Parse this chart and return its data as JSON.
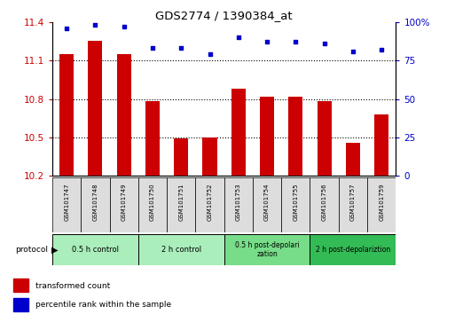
{
  "title": "GDS2774 / 1390384_at",
  "samples": [
    "GSM101747",
    "GSM101748",
    "GSM101749",
    "GSM101750",
    "GSM101751",
    "GSM101752",
    "GSM101753",
    "GSM101754",
    "GSM101755",
    "GSM101756",
    "GSM101757",
    "GSM101759"
  ],
  "bar_values": [
    11.15,
    11.25,
    11.15,
    10.78,
    10.49,
    10.5,
    10.88,
    10.82,
    10.82,
    10.78,
    10.46,
    10.68
  ],
  "dot_values": [
    96,
    98,
    97,
    83,
    83,
    79,
    90,
    87,
    87,
    86,
    81,
    82
  ],
  "bar_color": "#cc0000",
  "dot_color": "#0000cc",
  "ylim_left": [
    10.2,
    11.4
  ],
  "ylim_right": [
    0,
    100
  ],
  "yticks_left": [
    10.2,
    10.5,
    10.8,
    11.1,
    11.4
  ],
  "yticks_right": [
    0,
    25,
    50,
    75,
    100
  ],
  "ytick_labels_left": [
    "10.2",
    "10.5",
    "10.8",
    "11.1",
    "11.4"
  ],
  "ytick_labels_right": [
    "0",
    "25",
    "50",
    "75",
    "100%"
  ],
  "protocol_groups": [
    {
      "label": "0.5 h control",
      "start": 0,
      "end": 3,
      "color": "#aaeebb"
    },
    {
      "label": "2 h control",
      "start": 3,
      "end": 6,
      "color": "#aaeebb"
    },
    {
      "label": "0.5 h post-depolarization",
      "start": 6,
      "end": 9,
      "color": "#77dd88"
    },
    {
      "label": "2 h post-depolariztion",
      "start": 9,
      "end": 12,
      "color": "#33bb55"
    }
  ],
  "legend_items": [
    {
      "label": "transformed count",
      "color": "#cc0000"
    },
    {
      "label": "percentile rank within the sample",
      "color": "#0000cc"
    }
  ],
  "tick_label_color_left": "#cc0000",
  "tick_label_color_right": "#0000cc",
  "bar_width": 0.5,
  "sample_box_color": "#dddddd"
}
